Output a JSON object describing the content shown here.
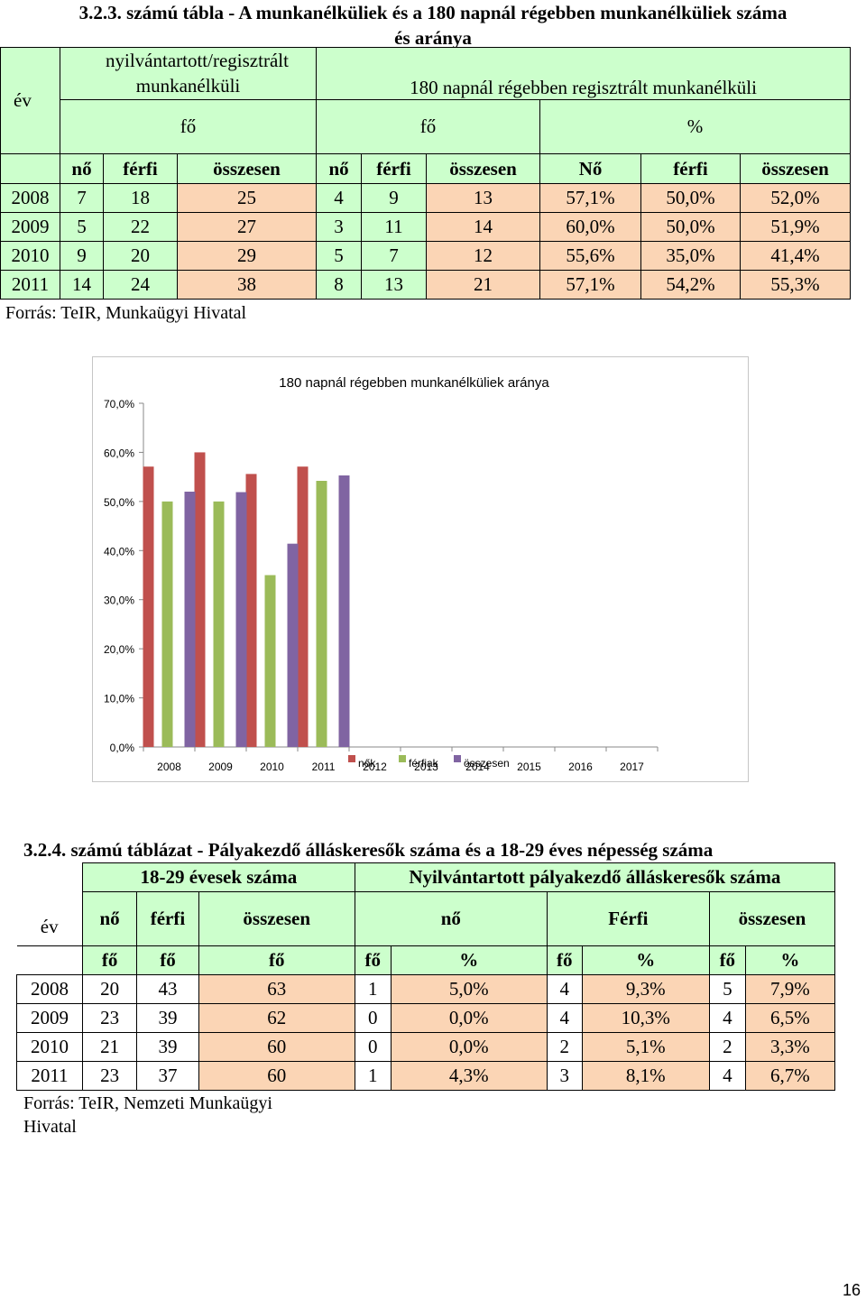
{
  "table1": {
    "title_line1": "3.2.3. számú tábla - A munkanélküliek és a 180 napnál régebben munkanélküliek száma",
    "title_line2": "és aránya",
    "header": {
      "ev": "év",
      "group1": "nyilvántartott/regisztrált munkanélküli",
      "group2": "180 napnál régebben regisztrált munkanélküli",
      "unit_fo_1": "fő",
      "unit_fo_2": "fő",
      "unit_pct": "%",
      "cols": [
        "nő",
        "férfi",
        "összesen",
        "nő",
        "férfi",
        "összesen",
        "Nő",
        "férfi",
        "összesen"
      ]
    },
    "rows": [
      [
        "2008",
        "7",
        "18",
        "25",
        "4",
        "9",
        "13",
        "57,1%",
        "50,0%",
        "52,0%"
      ],
      [
        "2009",
        "5",
        "22",
        "27",
        "3",
        "11",
        "14",
        "60,0%",
        "50,0%",
        "51,9%"
      ],
      [
        "2010",
        "9",
        "20",
        "29",
        "5",
        "7",
        "12",
        "55,6%",
        "35,0%",
        "41,4%"
      ],
      [
        "2011",
        "14",
        "24",
        "38",
        "8",
        "13",
        "21",
        "57,1%",
        "54,2%",
        "55,3%"
      ]
    ],
    "source": "Forrás: TeIR, Munkaügyi Hivatal"
  },
  "chart_data": {
    "type": "bar",
    "title": "180 napnál régebben munkanélküliek aránya",
    "categories": [
      "2008",
      "2009",
      "2010",
      "2011",
      "2012",
      "2013",
      "2014",
      "2015",
      "2016",
      "2017"
    ],
    "series": [
      {
        "name": "nők",
        "color": "#c0504d",
        "values": [
          57.1,
          60.0,
          55.6,
          57.1,
          null,
          null,
          null,
          null,
          null,
          null
        ]
      },
      {
        "name": "férfiak",
        "color": "#9bbb59",
        "values": [
          50.0,
          50.0,
          35.0,
          54.2,
          null,
          null,
          null,
          null,
          null,
          null
        ]
      },
      {
        "name": "összesen",
        "color": "#8064a2",
        "values": [
          52.0,
          51.9,
          41.4,
          55.3,
          null,
          null,
          null,
          null,
          null,
          null
        ]
      }
    ],
    "yticks": [
      "0,0%",
      "10,0%",
      "20,0%",
      "30,0%",
      "40,0%",
      "50,0%",
      "60,0%",
      "70,0%"
    ],
    "ylim": [
      0,
      70
    ],
    "grid": false,
    "legend_position": "bottom"
  },
  "table2": {
    "title": "3.2.4. számú táblázat - Pályakezdő álláskeresők száma és a 18-29 éves népesség száma",
    "header": {
      "group1": "18-29 évesek száma",
      "group2": "Nyilvántartott pályakezdő álláskeresők száma",
      "ev": "év",
      "sub": [
        "nő",
        "férfi",
        "összesen",
        "nő",
        "Férfi",
        "összesen"
      ],
      "units": [
        "fő",
        "fő",
        "fő",
        "fő",
        "%",
        "fő",
        "%",
        "fő",
        "%"
      ]
    },
    "rows": [
      [
        "2008",
        "20",
        "43",
        "63",
        "1",
        "5,0%",
        "4",
        "9,3%",
        "5",
        "7,9%"
      ],
      [
        "2009",
        "23",
        "39",
        "62",
        "0",
        "0,0%",
        "4",
        "10,3%",
        "4",
        "6,5%"
      ],
      [
        "2010",
        "21",
        "39",
        "60",
        "0",
        "0,0%",
        "2",
        "5,1%",
        "2",
        "3,3%"
      ],
      [
        "2011",
        "23",
        "37",
        "60",
        "1",
        "4,3%",
        "3",
        "8,1%",
        "4",
        "6,7%"
      ]
    ],
    "source_line1": "Forrás: TeIR, Nemzeti Munkaügyi",
    "source_line2": "Hivatal"
  },
  "page_number": "16"
}
